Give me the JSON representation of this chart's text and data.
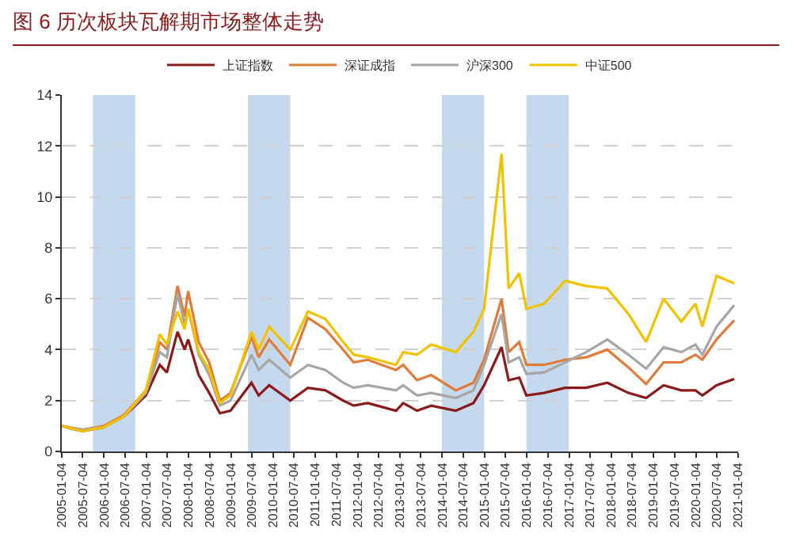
{
  "chart_data": {
    "type": "line",
    "title": "图 6 历次板块瓦解期市场整体走势",
    "x": [
      "2005-01-04",
      "2005-07",
      "2006-01",
      "2006-07",
      "2007-01",
      "2007-05",
      "2007-07",
      "2007-10",
      "2007-12",
      "2008-01",
      "2008-04",
      "2008-07",
      "2008-10",
      "2009-01",
      "2009-07",
      "2009-09",
      "2009-12",
      "2010-06",
      "2010-11",
      "2011-04",
      "2011-09",
      "2011-12",
      "2012-04",
      "2012-12",
      "2013-02",
      "2013-06",
      "2013-10",
      "2014-05",
      "2014-10",
      "2015-01",
      "2015-06",
      "2015-08",
      "2015-11",
      "2016-01",
      "2016-06",
      "2016-12",
      "2017-06",
      "2017-12",
      "2018-06",
      "2018-11",
      "2019-04",
      "2019-09",
      "2020-01",
      "2020-03",
      "2020-07",
      "2020-12"
    ],
    "series": [
      {
        "name": "上证指数",
        "color": "#8b1a1a",
        "values": [
          1.0,
          0.8,
          0.95,
          1.4,
          2.2,
          3.4,
          3.1,
          4.7,
          4.0,
          4.4,
          3.0,
          2.3,
          1.5,
          1.6,
          2.7,
          2.2,
          2.6,
          2.0,
          2.5,
          2.4,
          2.0,
          1.8,
          1.9,
          1.6,
          1.9,
          1.6,
          1.8,
          1.6,
          1.9,
          2.6,
          4.1,
          2.8,
          2.9,
          2.2,
          2.3,
          2.5,
          2.5,
          2.7,
          2.3,
          2.1,
          2.6,
          2.4,
          2.4,
          2.2,
          2.6,
          2.85
        ]
      },
      {
        "name": "深证成指",
        "color": "#e07b39",
        "values": [
          1.0,
          0.85,
          1.0,
          1.45,
          2.4,
          4.3,
          4.0,
          6.5,
          5.3,
          6.3,
          4.3,
          3.5,
          2.0,
          2.3,
          4.5,
          3.7,
          4.4,
          3.4,
          5.25,
          4.8,
          4.0,
          3.5,
          3.6,
          3.2,
          3.4,
          2.8,
          3.0,
          2.4,
          2.7,
          3.6,
          6.0,
          3.9,
          4.3,
          3.4,
          3.4,
          3.6,
          3.7,
          4.0,
          3.3,
          2.65,
          3.5,
          3.5,
          3.8,
          3.6,
          4.4,
          5.15
        ]
      },
      {
        "name": "沪深300",
        "color": "#a6a6a6",
        "values": [
          1.0,
          0.85,
          0.95,
          1.4,
          2.3,
          3.9,
          3.7,
          6.2,
          5.0,
          5.6,
          3.8,
          3.0,
          1.8,
          2.0,
          3.8,
          3.2,
          3.6,
          2.9,
          3.4,
          3.2,
          2.7,
          2.5,
          2.6,
          2.4,
          2.6,
          2.2,
          2.3,
          2.1,
          2.4,
          3.4,
          5.4,
          3.5,
          3.7,
          3.05,
          3.1,
          3.5,
          3.9,
          4.4,
          3.8,
          3.25,
          4.1,
          3.9,
          4.2,
          3.8,
          4.9,
          5.75
        ]
      },
      {
        "name": "中证500",
        "color": "#f2c200",
        "values": [
          1.0,
          0.8,
          0.95,
          1.4,
          2.4,
          4.6,
          4.2,
          5.5,
          4.8,
          5.6,
          3.9,
          3.2,
          1.9,
          2.2,
          4.7,
          4.0,
          4.9,
          4.0,
          5.5,
          5.2,
          4.3,
          3.8,
          3.7,
          3.4,
          3.9,
          3.8,
          4.2,
          3.9,
          4.7,
          5.6,
          11.7,
          6.4,
          7.0,
          5.6,
          5.8,
          6.7,
          6.5,
          6.4,
          5.4,
          4.3,
          6.0,
          5.1,
          5.8,
          4.9,
          6.9,
          6.6
        ]
      }
    ],
    "xlim": [
      "2005-01-04",
      "2021-01-04"
    ],
    "xticks": [
      "2005-01-04",
      "2005-07-04",
      "2006-01-04",
      "2006-07-04",
      "2007-01-04",
      "2007-07-04",
      "2008-01-04",
      "2008-07-04",
      "2009-01-04",
      "2009-07-04",
      "2010-01-04",
      "2010-07-04",
      "2011-01-04",
      "2011-07-04",
      "2012-01-04",
      "2012-07-04",
      "2013-01-04",
      "2013-07-04",
      "2014-01-04",
      "2014-07-04",
      "2015-01-04",
      "2015-07-04",
      "2016-01-04",
      "2016-07-04",
      "2017-01-04",
      "2017-07-04",
      "2018-01-04",
      "2018-07-04",
      "2019-01-04",
      "2019-07-04",
      "2020-01-04",
      "2020-07-04",
      "2021-01-04"
    ],
    "ylim": [
      0,
      14
    ],
    "yticks": [
      0,
      2,
      4,
      6,
      8,
      10,
      12,
      14
    ],
    "bands": [
      {
        "axis": "x",
        "from": "2005-10",
        "to": "2006-10",
        "color": "#c5d9ee"
      },
      {
        "axis": "x",
        "from": "2009-06",
        "to": "2010-06",
        "color": "#c5d9ee"
      },
      {
        "axis": "x",
        "from": "2014-01",
        "to": "2015-01",
        "color": "#c5d9ee"
      },
      {
        "axis": "x",
        "from": "2016-01",
        "to": "2017-01",
        "color": "#c5d9ee"
      }
    ],
    "grid": "y",
    "legend": "top",
    "marker": "none",
    "line_style": "solid"
  }
}
